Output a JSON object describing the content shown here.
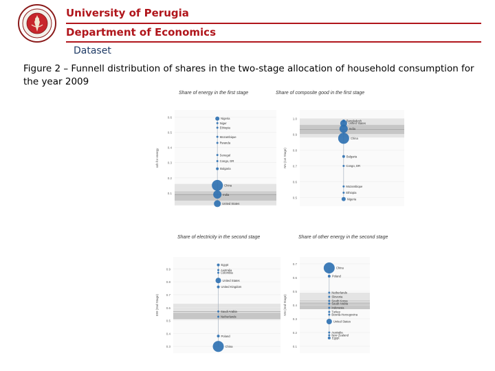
{
  "header": {
    "university": "University of Perugia",
    "department": "Department of Economics",
    "section": "Dataset"
  },
  "caption": "Figure 2 – Funnell distribution of shares in the two-stage allocation of household consumption for the year 2009",
  "colors": {
    "accent": "#b0151b",
    "section_text": "#1f3b66",
    "marker": "#2b6fb0",
    "band_outer": "#e4e4e4",
    "band_inner": "#c6c6c6"
  },
  "chart_data": [
    {
      "type": "scatter",
      "title": "Share of energy in the first stage",
      "ylabel": "ssh for energy",
      "ylim": [
        0.05,
        0.62
      ],
      "yticks": [
        "0.6",
        "0.5",
        "0.4",
        "0.3",
        "0.2",
        "0.1",
        "0.0"
      ],
      "yticks_values": [
        0.6,
        0.5,
        0.4,
        0.3,
        0.2,
        0.1,
        0.0
      ],
      "band_outer": [
        0.02,
        0.16
      ],
      "band_inner": [
        0.05,
        0.11
      ],
      "center_line": 0.09,
      "points": [
        {
          "label": "Nigeria",
          "y": 0.59,
          "size": 3
        },
        {
          "label": "Niger",
          "y": 0.56,
          "size": 1.5
        },
        {
          "label": "Ethiopia",
          "y": 0.53,
          "size": 1.5
        },
        {
          "label": "Mozambique",
          "y": 0.47,
          "size": 1.5
        },
        {
          "label": "Rwanda",
          "y": 0.43,
          "size": 1.5
        },
        {
          "label": "Senegal",
          "y": 0.35,
          "size": 1.5
        },
        {
          "label": "Congo, DR",
          "y": 0.31,
          "size": 1.5
        },
        {
          "label": "Bulgaria",
          "y": 0.26,
          "size": 2
        },
        {
          "label": "China",
          "y": 0.15,
          "size": 8
        },
        {
          "label": "India",
          "y": 0.09,
          "size": 6
        },
        {
          "label": "United States",
          "y": 0.03,
          "size": 5
        }
      ]
    },
    {
      "type": "scatter",
      "title": "Share of composite good in the first stage",
      "ylabel": "NN (1st Stage)",
      "ylim": [
        0.48,
        1.02
      ],
      "yticks": [
        "1.0",
        "0.9",
        "0.8",
        "0.7",
        "0.6",
        "0.5"
      ],
      "yticks_values": [
        1.0,
        0.9,
        0.8,
        0.7,
        0.6,
        0.5
      ],
      "band_outer": [
        0.88,
        1.0
      ],
      "band_inner": [
        0.9,
        0.96
      ],
      "center_line": 0.93,
      "points": [
        {
          "label": "United States",
          "y": 0.97,
          "size": 5
        },
        {
          "label": "Bangladesh",
          "y": 0.985,
          "size": 2
        },
        {
          "label": "India",
          "y": 0.935,
          "size": 6
        },
        {
          "label": "China",
          "y": 0.875,
          "size": 8
        },
        {
          "label": "Bulgaria",
          "y": 0.76,
          "size": 2
        },
        {
          "label": "Congo, DR",
          "y": 0.7,
          "size": 1.5
        },
        {
          "label": "Mozambique",
          "y": 0.57,
          "size": 1.5
        },
        {
          "label": "Ethiopia",
          "y": 0.53,
          "size": 1.5
        },
        {
          "label": "Nigeria",
          "y": 0.49,
          "size": 3
        }
      ]
    },
    {
      "type": "scatter",
      "title": "Share of electricity in the second stage",
      "ylabel": "EW (2nd Stage)",
      "ylim": [
        0.28,
        0.96
      ],
      "yticks": [
        "0.9",
        "0.8",
        "0.7",
        "0.6",
        "0.5",
        "0.4",
        "0.3"
      ],
      "yticks_values": [
        0.9,
        0.8,
        0.7,
        0.6,
        0.5,
        0.4,
        0.3
      ],
      "band_outer": [
        0.51,
        0.63
      ],
      "band_inner": [
        0.51,
        0.56
      ],
      "center_line": 0.57,
      "points": [
        {
          "label": "Egypt",
          "y": 0.93,
          "size": 2
        },
        {
          "label": "Australia",
          "y": 0.89,
          "size": 1.5
        },
        {
          "label": "Colombia",
          "y": 0.87,
          "size": 1.5
        },
        {
          "label": "United States",
          "y": 0.81,
          "size": 4
        },
        {
          "label": "United Kingdom",
          "y": 0.76,
          "size": 2
        },
        {
          "label": "Saudi Arabia",
          "y": 0.57,
          "size": 1.5
        },
        {
          "label": "Netherlands",
          "y": 0.53,
          "size": 1.5
        },
        {
          "label": "Poland",
          "y": 0.38,
          "size": 2
        },
        {
          "label": "China",
          "y": 0.3,
          "size": 8
        }
      ]
    },
    {
      "type": "scatter",
      "title": "Share of other energy in the second stage",
      "ylabel": "NN (2nd Stage)",
      "ylim": [
        0.08,
        0.72
      ],
      "yticks": [
        "0.7",
        "0.6",
        "0.5",
        "0.4",
        "0.3",
        "0.2",
        "0.1"
      ],
      "yticks_values": [
        0.7,
        0.6,
        0.5,
        0.4,
        0.3,
        0.2,
        0.1
      ],
      "band_outer": [
        0.37,
        0.49
      ],
      "band_inner": [
        0.37,
        0.42
      ],
      "center_line": 0.43,
      "points": [
        {
          "label": "China",
          "y": 0.67,
          "size": 8
        },
        {
          "label": "Poland",
          "y": 0.61,
          "size": 2
        },
        {
          "label": "Netherlands",
          "y": 0.49,
          "size": 1.5
        },
        {
          "label": "Slovenia",
          "y": 0.46,
          "size": 1.5
        },
        {
          "label": "South Korea",
          "y": 0.43,
          "size": 1.5
        },
        {
          "label": "Saudi Arabia",
          "y": 0.41,
          "size": 1.5
        },
        {
          "label": "Indonesia",
          "y": 0.38,
          "size": 1.5
        },
        {
          "label": "Turkey",
          "y": 0.35,
          "size": 1.5
        },
        {
          "label": "Bosnia-Herzegovina",
          "y": 0.33,
          "size": 1.5
        },
        {
          "label": "United States",
          "y": 0.28,
          "size": 4
        },
        {
          "label": "Australia",
          "y": 0.2,
          "size": 1.5
        },
        {
          "label": "New Zealand",
          "y": 0.18,
          "size": 1.5
        },
        {
          "label": "Egypt",
          "y": 0.16,
          "size": 2
        }
      ]
    }
  ]
}
